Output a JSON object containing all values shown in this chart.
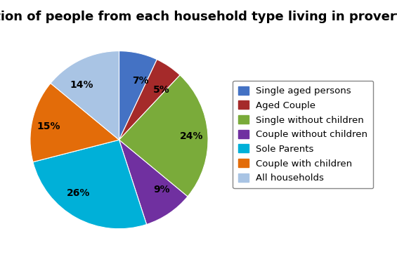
{
  "title": "Proportion of people from each household type living in proverty",
  "labels": [
    "Single aged persons",
    "Aged Couple",
    "Single without children",
    "Couple without children",
    "Sole Parents",
    "Couple with children",
    "All households"
  ],
  "values": [
    7,
    5,
    24,
    9,
    26,
    15,
    14
  ],
  "colors": [
    "#4472C4",
    "#A52A2A",
    "#7AAB3A",
    "#7030A0",
    "#00B0D8",
    "#E36C09",
    "#A9C4E4"
  ],
  "title_fontsize": 13,
  "label_fontsize": 10,
  "legend_fontsize": 9.5,
  "background_color": "#FFFFFF"
}
